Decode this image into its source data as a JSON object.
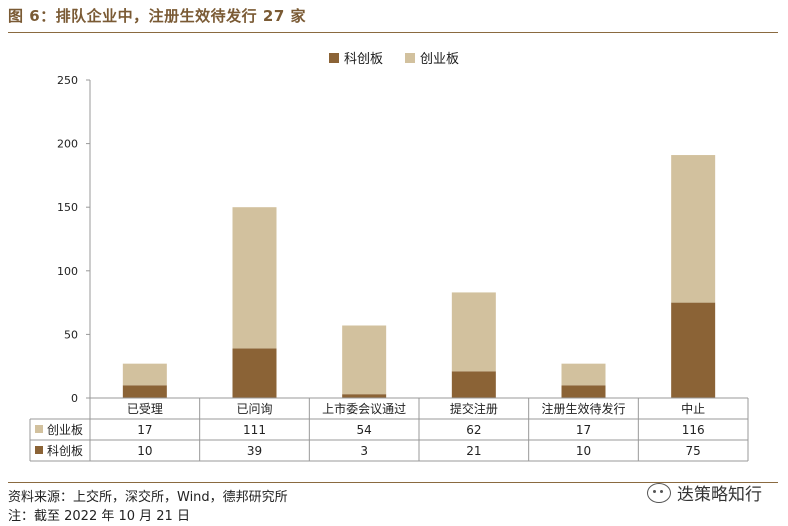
{
  "header": {
    "title": "图 6：排队企业中，注册生效待发行 27 家"
  },
  "legend": {
    "items": [
      {
        "name": "科创板",
        "color": "#8b6336"
      },
      {
        "name": "创业板",
        "color": "#d2c19e"
      }
    ]
  },
  "chart_data": {
    "type": "bar",
    "stacked": true,
    "categories": [
      "已受理",
      "已问询",
      "上市委会议通过",
      "提交注册",
      "注册生效待发行",
      "中止"
    ],
    "series": [
      {
        "name": "科创板",
        "values": [
          10,
          39,
          3,
          21,
          10,
          75
        ],
        "color": "#8b6336"
      },
      {
        "name": "创业板",
        "values": [
          17,
          111,
          54,
          62,
          17,
          116
        ],
        "color": "#d2c19e"
      }
    ],
    "ylim": [
      0,
      250
    ],
    "yticks": [
      0,
      50,
      100,
      150,
      200,
      250
    ],
    "table": {
      "rows": [
        {
          "label": "创业板",
          "values": [
            "17",
            "111",
            "54",
            "62",
            "17",
            "116"
          ],
          "color": "#d2c19e"
        },
        {
          "label": "科创板",
          "values": [
            "10",
            "39",
            "3",
            "21",
            "10",
            "75"
          ],
          "color": "#8b6336"
        }
      ]
    }
  },
  "footer": {
    "source": "资料来源：上交所，深交所，Wind，德邦研究所",
    "note": "注：截至 2022 年 10 月 21 日"
  },
  "watermark": {
    "text": "迭策略知行",
    "icon": "wechat-icon"
  }
}
